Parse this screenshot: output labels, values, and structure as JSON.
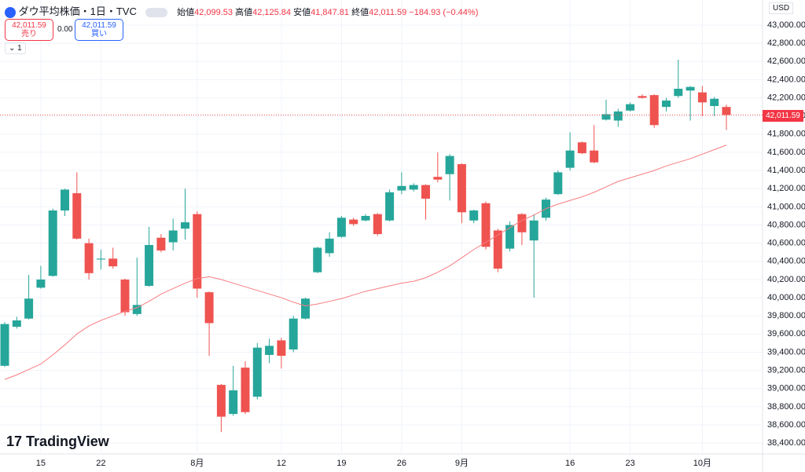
{
  "header": {
    "symbol": "ダウ平均株価・1日・TVC",
    "o_label": "始値",
    "o": "42,099.53",
    "h_label": "高値",
    "h": "42,125.84",
    "l_label": "安値",
    "l": "41,847.81",
    "c_label": "終値",
    "c": "42,011.59",
    "change": "−184.93 (−0.44%)",
    "sell_price": "42,011.59",
    "sell": "売り",
    "spread": "0.00",
    "buy_price": "42,011.59",
    "buy": "買い",
    "indicators": "1",
    "currency": "USD",
    "last_price": "42,011.59",
    "brand": "TradingView"
  },
  "chart_data": {
    "type": "candlestick",
    "up_color": "#26a69a",
    "down_color": "#ef5350",
    "grid": true,
    "categories": [
      null,
      null,
      null,
      "15",
      null,
      null,
      null,
      null,
      "22",
      null,
      null,
      null,
      null,
      null,
      null,
      null,
      "8月",
      null,
      null,
      null,
      null,
      null,
      null,
      "12",
      null,
      null,
      null,
      null,
      "19",
      null,
      null,
      null,
      null,
      "26",
      null,
      null,
      null,
      null,
      "9月",
      null,
      null,
      null,
      null,
      null,
      null,
      null,
      null,
      "16",
      null,
      null,
      null,
      null,
      "23",
      null,
      null,
      null,
      null,
      null,
      "10月",
      null,
      null
    ],
    "open": [
      39250,
      39680,
      39770,
      40110,
      40240,
      40960,
      41150,
      40600,
      40420,
      40430,
      40200,
      39820,
      40130,
      40660,
      40610,
      40760,
      40920,
      40060,
      39040,
      38720,
      39230,
      38910,
      39370,
      39530,
      39430,
      39770,
      40280,
      40490,
      40670,
      40860,
      40850,
      40920,
      40850,
      41180,
      41190,
      41240,
      41330,
      41360,
      41470,
      40850,
      41040,
      40740,
      40540,
      40920,
      40630,
      40880,
      41140,
      41430,
      41710,
      41620,
      41960,
      41950,
      42060,
      42220,
      42230,
      42100,
      42220,
      42280,
      42260,
      42110,
      42099.53
    ],
    "high": [
      39730,
      39790,
      40250,
      40350,
      40980,
      41200,
      41380,
      40650,
      40530,
      40550,
      40210,
      40440,
      40780,
      40700,
      40870,
      41200,
      40950,
      40070,
      39050,
      39250,
      39300,
      39500,
      39550,
      39560,
      39800,
      40000,
      40560,
      40720,
      40900,
      40880,
      40920,
      40930,
      41190,
      41380,
      41260,
      41250,
      41600,
      41580,
      41480,
      40970,
      41060,
      40760,
      40840,
      40930,
      40920,
      41100,
      41400,
      41820,
      41720,
      41900,
      42180,
      42080,
      42150,
      42240,
      42240,
      42200,
      42620,
      42330,
      42330,
      42210,
      42125.84
    ],
    "low": [
      39240,
      39660,
      39760,
      40100,
      40230,
      40900,
      40640,
      40200,
      40310,
      40320,
      39800,
      39800,
      40120,
      40500,
      40520,
      40640,
      40000,
      39360,
      38520,
      38700,
      38720,
      38880,
      39280,
      39220,
      39400,
      39760,
      40270,
      40450,
      40660,
      40790,
      40840,
      40680,
      40840,
      41140,
      41170,
      40860,
      41270,
      41070,
      40820,
      40820,
      40530,
      40280,
      40510,
      40580,
      40000,
      40850,
      41130,
      41400,
      41580,
      41480,
      41950,
      41880,
      42050,
      42190,
      41870,
      42050,
      42200,
      41950,
      42000,
      42000,
      41847.81
    ],
    "close": [
      39710,
      39750,
      39990,
      40200,
      40960,
      41190,
      40650,
      40270,
      40430,
      40345,
      39840,
      39920,
      40580,
      40520,
      40740,
      40830,
      40100,
      39720,
      38690,
      38980,
      38740,
      39450,
      39470,
      39360,
      39770,
      39990,
      40550,
      40650,
      40880,
      40810,
      40900,
      40700,
      41160,
      41230,
      41240,
      41090,
      41300,
      41560,
      40940,
      40960,
      40560,
      40320,
      40800,
      40720,
      40850,
      41080,
      41380,
      41620,
      41590,
      41490,
      42020,
      42050,
      42130,
      42200,
      41900,
      42170,
      42300,
      42320,
      42150,
      42190,
      42011.59
    ],
    "ma": {
      "color": "#f77c80",
      "values": [
        39100,
        39150,
        39210,
        39270,
        39370,
        39480,
        39600,
        39690,
        39750,
        39800,
        39850,
        39890,
        39960,
        40040,
        40100,
        40160,
        40210,
        40230,
        40200,
        40160,
        40120,
        40080,
        40040,
        40000,
        39950,
        39910,
        39930,
        39960,
        39990,
        40030,
        40070,
        40100,
        40130,
        40160,
        40180,
        40220,
        40280,
        40350,
        40440,
        40530,
        40610,
        40690,
        40770,
        40850,
        40910,
        40980,
        41030,
        41070,
        41110,
        41160,
        41220,
        41280,
        41320,
        41360,
        41400,
        41450,
        41490,
        41530,
        41580,
        41630,
        41680
      ]
    },
    "ylim": [
      38280,
      43277
    ],
    "yticks": [
      {
        "value": 38400,
        "label": "38,400.00"
      },
      {
        "value": 38600,
        "label": "38,600.00"
      },
      {
        "value": 38800,
        "label": "38,800.00"
      },
      {
        "value": 39000,
        "label": "39,000.00"
      },
      {
        "value": 39200,
        "label": "39,200.00"
      },
      {
        "value": 39400,
        "label": "39,400.00"
      },
      {
        "value": 39600,
        "label": "39,600.00"
      },
      {
        "value": 39800,
        "label": "39,800.00"
      },
      {
        "value": 40000,
        "label": "40,000.00"
      },
      {
        "value": 40200,
        "label": "40,200.00"
      },
      {
        "value": 40400,
        "label": "40,400.00"
      },
      {
        "value": 40600,
        "label": "40,600.00"
      },
      {
        "value": 40800,
        "label": "40,800.00"
      },
      {
        "value": 41000,
        "label": "41,000.00"
      },
      {
        "value": 41200,
        "label": "41,200.00"
      },
      {
        "value": 41400,
        "label": "41,400.00"
      },
      {
        "value": 41600,
        "label": "41,600.00"
      },
      {
        "value": 41800,
        "label": "41,800.00"
      },
      {
        "value": 42000,
        "label": "42,000.00"
      },
      {
        "value": 42200,
        "label": "42,200.00"
      },
      {
        "value": 42400,
        "label": "42,400.00"
      },
      {
        "value": 42600,
        "label": "42,600.00"
      },
      {
        "value": 42800,
        "label": "42,800.00"
      },
      {
        "value": 43000,
        "label": "43,000.00"
      }
    ]
  }
}
